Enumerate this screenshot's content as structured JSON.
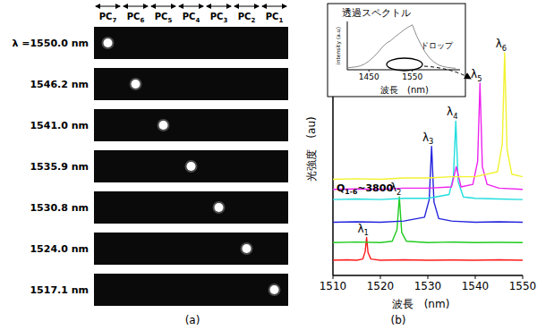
{
  "panel_a": {
    "columns": [
      "PC7",
      "PC6",
      "PC5",
      "PC4",
      "PC3",
      "PC2",
      "PC1"
    ],
    "rows": [
      {
        "label": "λ =1550.0 nm",
        "spot": 0
      },
      {
        "label": "1546.2 nm",
        "spot": 1
      },
      {
        "label": "1541.0 nm",
        "spot": 2
      },
      {
        "label": "1535.9 nm",
        "spot": 3
      },
      {
        "label": "1530.8 nm",
        "spot": 4
      },
      {
        "label": "1524.0 nm",
        "spot": 5
      },
      {
        "label": "1517.1 nm",
        "spot": 6
      }
    ]
  },
  "captions": [
    "(a)",
    "(b)"
  ],
  "chart_data": [
    {
      "type": "line",
      "xlabel": "波長　(nm)",
      "ylabel": "光強度　(au)",
      "xlim": [
        1510,
        1550
      ],
      "xticks": [
        1510,
        1520,
        1530,
        1540,
        1550
      ],
      "ylim": [
        0,
        10
      ],
      "yticks": [],
      "tick_labels": "x",
      "grid": false,
      "annotation": {
        "main": "Q",
        "sub": "1-6",
        "after": "~3800"
      },
      "series": [
        {
          "name": "λ1",
          "color": "#ff1a1a",
          "x": [
            1510,
            1513,
            1515,
            1516.3,
            1516.8,
            1517.1,
            1517.4,
            1518,
            1520,
            1525,
            1530,
            1535,
            1540,
            1545,
            1550
          ],
          "values": [
            0.6,
            0.62,
            0.6,
            0.65,
            0.95,
            1.5,
            0.9,
            0.65,
            0.6,
            0.62,
            0.6,
            0.61,
            0.6,
            0.62,
            0.6
          ]
        },
        {
          "name": "λ2",
          "color": "#1ecc1e",
          "x": [
            1510,
            1515,
            1520,
            1522.5,
            1523.5,
            1524.0,
            1524.5,
            1525.5,
            1530,
            1535,
            1540,
            1545,
            1550
          ],
          "values": [
            1.3,
            1.32,
            1.3,
            1.35,
            1.8,
            3.1,
            1.7,
            1.35,
            1.3,
            1.32,
            1.3,
            1.31,
            1.3
          ]
        },
        {
          "name": "λ3",
          "color": "#2222dd",
          "x": [
            1510,
            1515,
            1520,
            1525,
            1529.3,
            1530.3,
            1530.8,
            1531.3,
            1532.3,
            1535,
            1540,
            1545,
            1550
          ],
          "values": [
            2.1,
            2.12,
            2.1,
            2.15,
            2.3,
            3.0,
            5.1,
            2.9,
            2.25,
            2.15,
            2.1,
            2.12,
            2.1
          ]
        },
        {
          "name": "λ4",
          "color": "#22dddd",
          "x": [
            1510,
            1515,
            1520,
            1525,
            1530,
            1534.5,
            1535.4,
            1535.9,
            1536.4,
            1537.5,
            1540,
            1545,
            1550
          ],
          "values": [
            3.0,
            3.02,
            3.0,
            3.05,
            3.05,
            3.2,
            3.9,
            6.1,
            3.7,
            3.1,
            3.05,
            3.02,
            3.0
          ]
        },
        {
          "name": "λ5",
          "color": "#ee22ee",
          "x": [
            1510,
            1515,
            1520,
            1525,
            1530,
            1535,
            1536,
            1537,
            1539.5,
            1540.5,
            1541.0,
            1541.5,
            1542.5,
            1545,
            1550
          ],
          "values": [
            3.4,
            3.42,
            3.4,
            3.45,
            3.45,
            3.5,
            4.3,
            3.5,
            3.6,
            4.5,
            7.6,
            4.3,
            3.6,
            3.45,
            3.4
          ]
        },
        {
          "name": "λ6",
          "color": "#f2f230",
          "x": [
            1510,
            1515,
            1520,
            1525,
            1530,
            1535,
            1540,
            1544.7,
            1545.7,
            1546.2,
            1546.7,
            1547.7,
            1550
          ],
          "values": [
            3.8,
            3.82,
            3.8,
            3.85,
            3.85,
            3.9,
            3.9,
            4.1,
            5.2,
            8.8,
            5.0,
            4.0,
            3.9
          ]
        }
      ]
    },
    {
      "type": "line",
      "title": "透過スペクトル",
      "xlabel": "波長　(nm)",
      "ylabel": "intensity (a.u)",
      "xlim": [
        1400,
        1660
      ],
      "xticks": [
        1450,
        1550
      ],
      "ylim": [
        0,
        10
      ],
      "yticks": [],
      "tick_labels": "x",
      "grid": false,
      "annotation": "ドロップ",
      "series": [
        {
          "color": "#808080",
          "x": [
            1400,
            1410,
            1420,
            1430,
            1440,
            1450,
            1460,
            1470,
            1480,
            1490,
            1500,
            1510,
            1520,
            1530,
            1540,
            1550,
            1560,
            1570,
            1580,
            1590,
            1600,
            1610,
            1620,
            1630,
            1640,
            1650
          ],
          "values": [
            0.4,
            0.5,
            0.6,
            0.8,
            1.2,
            1.8,
            2.6,
            3.5,
            4.6,
            5.5,
            6.0,
            6.8,
            7.5,
            8.2,
            8.8,
            9.3,
            7.0,
            5.2,
            3.6,
            2.4,
            1.6,
            1.0,
            0.7,
            0.5,
            0.4,
            0.3
          ]
        }
      ]
    }
  ]
}
